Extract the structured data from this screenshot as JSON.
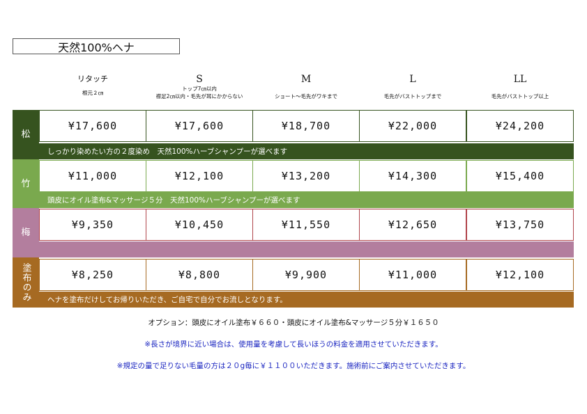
{
  "title": "天然100%ヘナ",
  "columns": [
    {
      "size": "リタッチ",
      "desc1": "根元２㎝",
      "desc2": ""
    },
    {
      "size": "S",
      "desc1": "トップ7㎝以内",
      "desc2": "襟足2㎝以内・毛先が耳にかからない"
    },
    {
      "size": "M",
      "desc1": "ショート〜毛先がワキまで",
      "desc2": ""
    },
    {
      "size": "L",
      "desc1": "毛先がバストトップまで",
      "desc2": ""
    },
    {
      "size": "LL",
      "desc1": "毛先がバストトップ以上",
      "desc2": ""
    }
  ],
  "tiers": [
    {
      "name": "松",
      "color": "#36531f",
      "prices": [
        "¥17,600",
        "¥17,600",
        "¥18,700",
        "¥22,000",
        "¥24,200"
      ],
      "note": "しっかり染めたい方の２度染め　天然100%ハーブシャンプーが選べます"
    },
    {
      "name": "竹",
      "color": "#7aa94e",
      "prices": [
        "¥11,000",
        "¥12,100",
        "¥13,200",
        "¥14,300",
        "¥15,400"
      ],
      "note": "頭皮にオイル塗布&マッサージ５分　天然100%ハーブシャンプーが選べます"
    },
    {
      "name": "梅",
      "color": "#b37e9e",
      "prices": [
        "¥9,350",
        "¥10,450",
        "¥11,550",
        "¥12,650",
        "¥13,750"
      ],
      "note": ""
    },
    {
      "name": "塗布のみ",
      "color": "#a66a22",
      "prices": [
        "¥8,250",
        "¥8,800",
        "¥9,900",
        "¥11,000",
        "¥12,100"
      ],
      "note": "ヘナを塗布だけしてお帰りいただき、ご自宅で自分でお流しとなります。"
    }
  ],
  "footer": {
    "options": "オプション：頭皮にオイル塗布￥６６０・頭皮にオイル塗布&マッサージ５分￥１６５０",
    "note1": "※長さが境界に近い場合は、使用量を考慮して長いほうの料金を適用させていただきます。",
    "note2": "※規定の量で足りない毛量の方は２０g毎に￥１１００いただきます。施術前にご案内させていただきます。"
  }
}
